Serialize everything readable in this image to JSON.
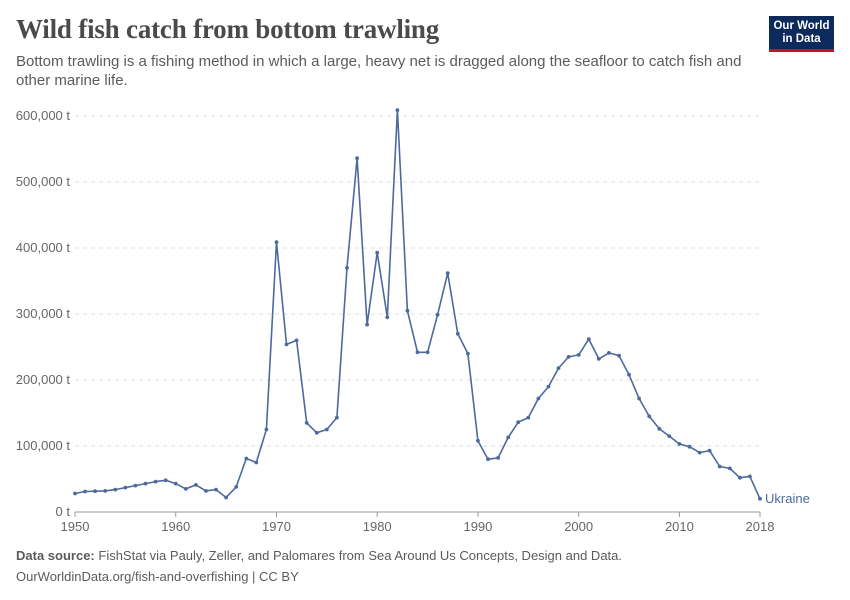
{
  "header": {
    "title": "Wild fish catch from bottom trawling",
    "subtitle": "Bottom trawling is a fishing method in which a large, heavy net is dragged along the seafloor to catch fish and other marine life."
  },
  "logo": {
    "line1": "Our World",
    "line2": "in Data"
  },
  "footer": {
    "source_label": "Data source:",
    "source_text": "FishStat via Pauly, Zeller, and Palomares from Sea Around Us Concepts, Design and Data.",
    "url_text": "OurWorldinData.org/fish-and-overfishing | CC BY"
  },
  "colors": {
    "series": "#4c6a9c",
    "grid": "#dddddd",
    "logo_bg": "#0d2a5c",
    "logo_accent": "#c8102e"
  },
  "chart_data": {
    "type": "line",
    "title": "Wild fish catch from bottom trawling",
    "xlabel": "",
    "ylabel": "",
    "xlim": [
      1950,
      2018
    ],
    "ylim": [
      0,
      600000
    ],
    "x_ticks": [
      1950,
      1960,
      1970,
      1980,
      1990,
      2000,
      2010,
      2018
    ],
    "y_ticks": [
      0,
      100000,
      200000,
      300000,
      400000,
      500000,
      600000
    ],
    "y_tick_labels": [
      "0 t",
      "100,000 t",
      "200,000 t",
      "300,000 t",
      "400,000 t",
      "500,000 t",
      "600,000 t"
    ],
    "grid": "horizontal-dashed",
    "series": [
      {
        "name": "Ukraine",
        "x": [
          1950,
          1951,
          1952,
          1953,
          1954,
          1955,
          1956,
          1957,
          1958,
          1959,
          1960,
          1961,
          1962,
          1963,
          1964,
          1965,
          1966,
          1967,
          1968,
          1969,
          1970,
          1971,
          1972,
          1973,
          1974,
          1975,
          1976,
          1977,
          1978,
          1979,
          1980,
          1981,
          1982,
          1983,
          1984,
          1985,
          1986,
          1987,
          1988,
          1989,
          1990,
          1991,
          1992,
          1993,
          1994,
          1995,
          1996,
          1997,
          1998,
          1999,
          2000,
          2001,
          2002,
          2003,
          2004,
          2005,
          2006,
          2007,
          2008,
          2009,
          2010,
          2011,
          2012,
          2013,
          2014,
          2015,
          2016,
          2017,
          2018
        ],
        "values": [
          28000,
          31000,
          31500,
          32000,
          34000,
          37000,
          40000,
          43000,
          46000,
          48000,
          43000,
          35000,
          41000,
          32000,
          34000,
          22000,
          38000,
          81000,
          75000,
          125000,
          409000,
          254000,
          260000,
          135000,
          120000,
          125000,
          143000,
          370000,
          536000,
          284000,
          393000,
          295000,
          609000,
          305000,
          242000,
          242000,
          299000,
          362000,
          270000,
          240000,
          108000,
          80000,
          82000,
          113000,
          136000,
          143000,
          172000,
          190000,
          218000,
          235000,
          238000,
          262000,
          232000,
          241000,
          237000,
          208000,
          172000,
          145000,
          126000,
          115000,
          103000,
          99000,
          90000,
          93000,
          69000,
          66000,
          52000,
          54000,
          20000
        ]
      }
    ]
  }
}
